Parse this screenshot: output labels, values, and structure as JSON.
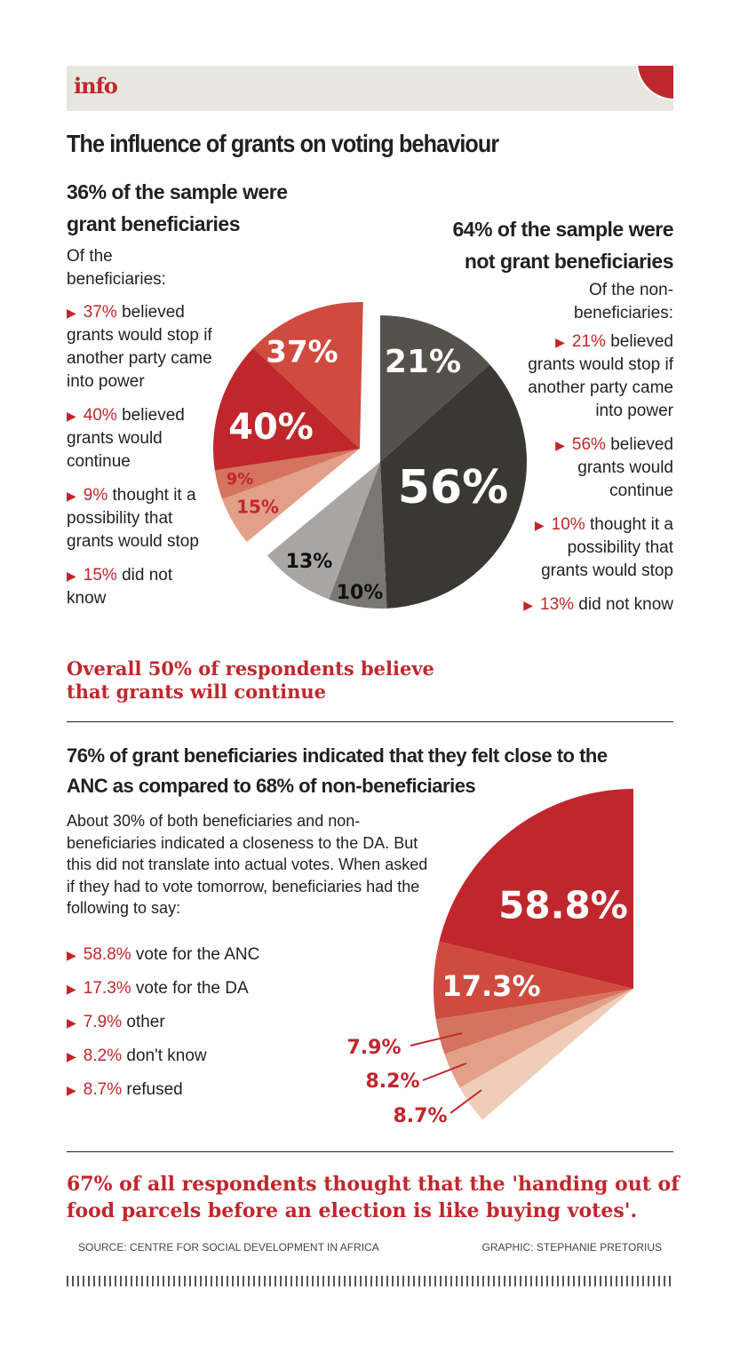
{
  "banner": {
    "label": "info",
    "accent": "#c0272d",
    "background": "#e8e7df"
  },
  "title": "The influence of grants on voting behaviour",
  "left": {
    "heading_1": "36% of the sample were",
    "heading_2": "grant beneficiaries",
    "intro": "Of the beneficiaries:",
    "items": [
      {
        "pct": "37%",
        "text": " believed grants would stop if another party came into power"
      },
      {
        "pct": "40%",
        "text": " believed grants would continue"
      },
      {
        "pct": "9%",
        "text": " thought it a possibility that grants would stop"
      },
      {
        "pct": "15%",
        "text": " did not know"
      }
    ]
  },
  "right": {
    "heading_1": "64% of the sample were",
    "heading_2": "not grant beneficiaries",
    "intro": "Of the non-beneficiaries:",
    "items": [
      {
        "pct": "21%",
        "text": " believed grants would stop if another party came into power"
      },
      {
        "pct": "56%",
        "text": " believed grants would continue"
      },
      {
        "pct": "10%",
        "text": " thought it a possibility that grants would stop"
      },
      {
        "pct": "13%",
        "text": " did not know"
      }
    ]
  },
  "overall": "Overall 50% of respondents believe that grants will continue",
  "section2": {
    "heading": "76% of grant beneficiaries indicated that they felt close to the ANC as compared to 68% of non-beneficiaries",
    "body": "About 30% of both beneficiaries and non-beneficiaries indicated a closeness to the DA. But this did not translate into actual votes. When asked if they had to vote tomorrow, beneficiaries had the following to say:",
    "items": [
      {
        "pct": "58.8%",
        "text": " vote for the ANC"
      },
      {
        "pct": "17.3%",
        "text": " vote for the DA"
      },
      {
        "pct": "7.9%",
        "text": " other"
      },
      {
        "pct": "8.2%",
        "text": " don't know"
      },
      {
        "pct": "8.7%",
        "text": " refused"
      }
    ]
  },
  "conclusion": "67% of all respondents thought that the 'handing out of food parcels before an election is like buying votes'.",
  "source": "SOURCE: CENTRE FOR SOCIAL DEVELOPMENT IN AFRICA",
  "credit": "GRAPHIC: STEPHANIE PRETORIUS",
  "chart_data": [
    {
      "type": "pie",
      "groups": [
        {
          "name": "grant beneficiaries",
          "share": 36,
          "slices": [
            {
              "label": "37%",
              "value": 37,
              "color": "#cf4b3f"
            },
            {
              "label": "40%",
              "value": 40,
              "color": "#c0272d"
            },
            {
              "label": "9%",
              "value": 9,
              "color": "#d4735f"
            },
            {
              "label": "15%",
              "value": 15,
              "color": "#e3a088"
            }
          ]
        },
        {
          "name": "not grant beneficiaries",
          "share": 64,
          "slices": [
            {
              "label": "21%",
              "value": 21,
              "color": "#55524c"
            },
            {
              "label": "56%",
              "value": 56,
              "color": "#3a3833"
            },
            {
              "label": "10%",
              "value": 10,
              "color": "#7a7875"
            },
            {
              "label": "13%",
              "value": 13,
              "color": "#a8a7a5"
            }
          ]
        }
      ]
    },
    {
      "type": "pie",
      "categories": [
        "vote for the ANC",
        "vote for the DA",
        "other",
        "don't know",
        "refused"
      ],
      "values": [
        58.8,
        17.3,
        7.9,
        8.2,
        8.7
      ],
      "labels": [
        "58.8%",
        "17.3%",
        "7.9%",
        "8.2%",
        "8.7%"
      ],
      "colors": [
        "#c0272d",
        "#cf4b3f",
        "#d4735f",
        "#e3a088",
        "#f0cdb8"
      ]
    }
  ]
}
